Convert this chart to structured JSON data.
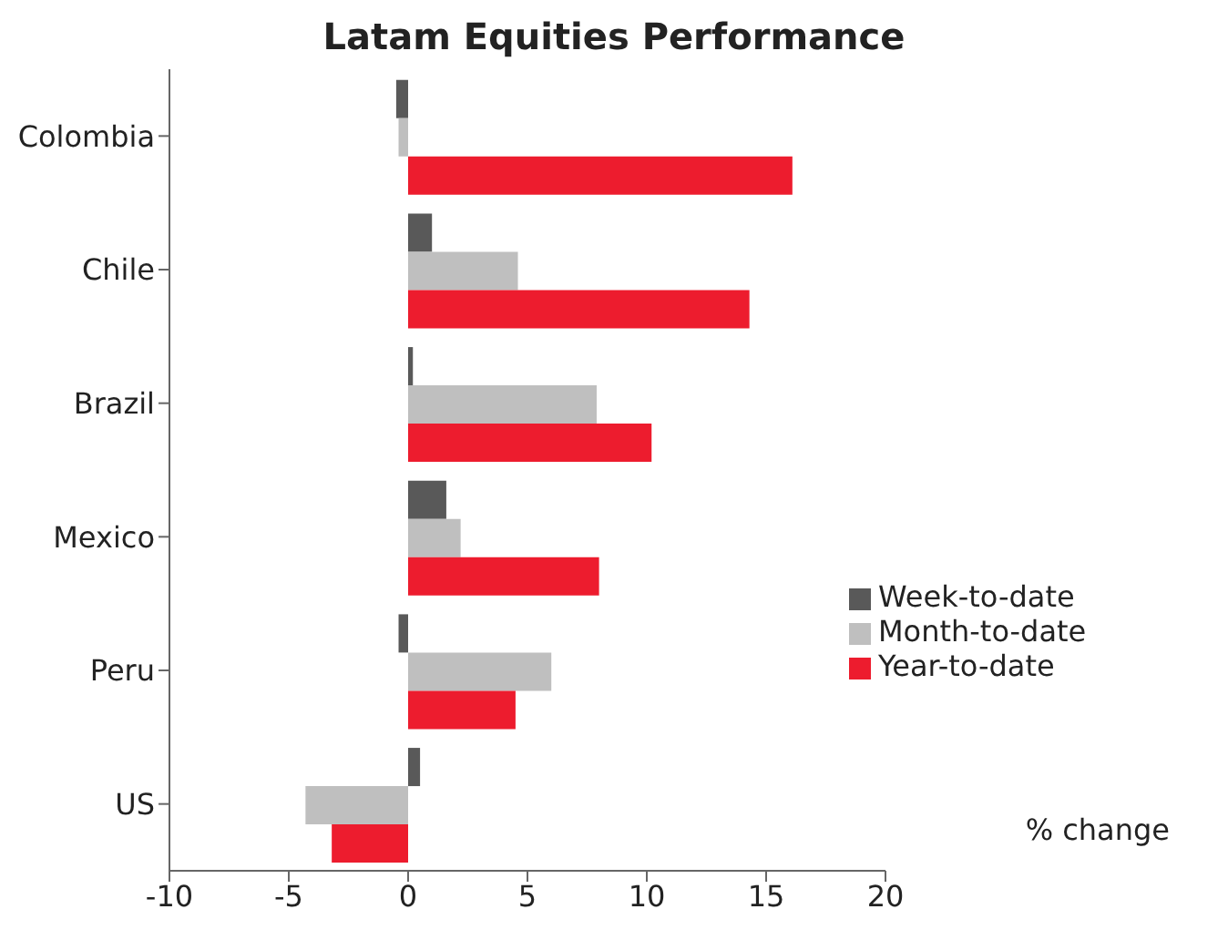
{
  "chart_data": {
    "type": "bar",
    "orientation": "horizontal",
    "title": "Latam Equities Performance",
    "categories": [
      "Colombia",
      "Chile",
      "Brazil",
      "Mexico",
      "Peru",
      "US"
    ],
    "series": [
      {
        "name": "Week-to-date",
        "color": "#595959",
        "values": [
          -0.5,
          1.0,
          0.2,
          1.6,
          -0.4,
          0.5
        ]
      },
      {
        "name": "Month-to-date",
        "color": "#bfbfbf",
        "values": [
          -0.4,
          4.6,
          7.9,
          2.2,
          6.0,
          -4.3
        ]
      },
      {
        "name": "Year-to-date",
        "color": "#ed1c2e",
        "values": [
          16.1,
          14.3,
          10.2,
          8.0,
          4.5,
          -3.2
        ]
      }
    ],
    "xlim": [
      -10,
      20
    ],
    "xticks": [
      -10,
      -5,
      0,
      5,
      10,
      15,
      20
    ],
    "grid": false,
    "legend": "right",
    "annotations": [
      "% change"
    ]
  }
}
